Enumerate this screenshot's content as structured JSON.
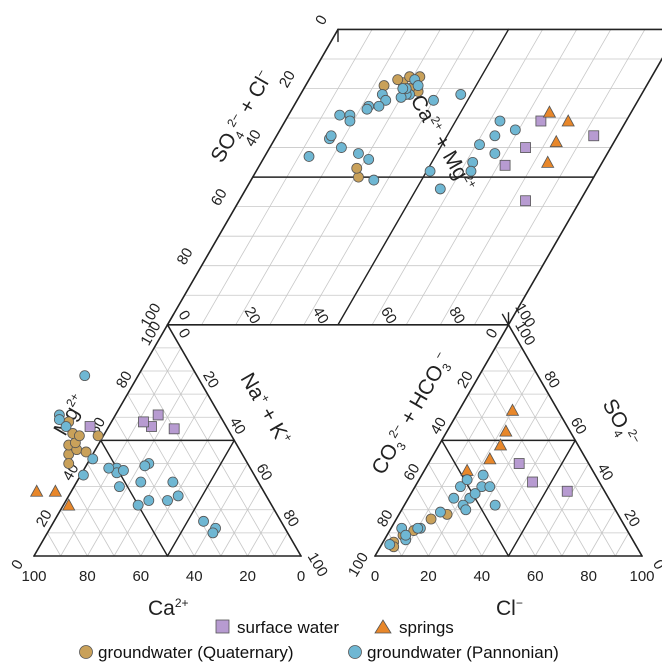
{
  "chart_data": {
    "type": "scatter",
    "subtype": "piper-diagram",
    "colors": {
      "surface_water": "#b79bd1",
      "springs": "#e8872a",
      "groundwater_quaternary": "#c9a15a",
      "groundwater_pannonian": "#6fb7d3",
      "marker_edge": "#555555",
      "frame": "#222222",
      "grid": "#c8c8c8"
    },
    "axes": {
      "cation": {
        "xlabel": "Ca²⁺",
        "xlabel_text": "Ca",
        "xlabel_sup": "2+",
        "left_label_text": "Mg",
        "left_label_sup": "2+",
        "right_label_text": "Na",
        "right_label_sup": "+",
        "right_label_text2": "K",
        "right_label_sup2": "+",
        "right_label_join": " + ",
        "ticks": [
          "0",
          "20",
          "40",
          "60",
          "80",
          "100"
        ]
      },
      "anion": {
        "xlabel": "Cl⁻",
        "xlabel_text": "Cl",
        "xlabel_sup": "−",
        "left_label": "CO₃²⁻ + HCO₃⁻",
        "right_label_text": "SO",
        "right_label_sub": "4",
        "right_label_sup": "2−",
        "ticks": [
          "0",
          "20",
          "40",
          "60",
          "80",
          "100"
        ]
      },
      "diamond": {
        "left_label": "SO₄²⁻ + Cl⁻",
        "right_label": "Ca²⁺ + Mg²⁺",
        "ticks": [
          "0",
          "20",
          "40",
          "60",
          "80",
          "100"
        ]
      }
    },
    "label_text": {
      "co3": "CO",
      "co3_sub": "3",
      "co3_sup": "2−",
      "plus": " + ",
      "hco3": "HCO",
      "hco3_sub": "3",
      "hco3_sup": "−",
      "so4": "SO",
      "so4_sub": "4",
      "so4_sup": "2−",
      "cl": "Cl",
      "cl_sup": "−",
      "ca": "Ca",
      "ca_sup": "2+",
      "mg": "Mg",
      "mg_sup": "2+"
    },
    "legend": [
      {
        "key": "surface_water",
        "label": "surface water",
        "marker": "square"
      },
      {
        "key": "springs",
        "label": "springs",
        "marker": "triangle"
      },
      {
        "key": "groundwater_quaternary",
        "label": "groundwater (Quaternary)",
        "marker": "circle"
      },
      {
        "key": "groundwater_pannonian",
        "label": "groundwater (Pannonian)",
        "marker": "circle"
      }
    ],
    "series": [
      {
        "name": "surface water",
        "key": "surface_water",
        "marker": "square",
        "cation": [
          [
            20,
            55
          ],
          [
            28,
            56
          ],
          [
            23,
            61
          ],
          [
            51,
            56
          ],
          [
            30,
            58
          ]
        ],
        "anion": [
          [
            34,
            40
          ],
          [
            43,
            32
          ],
          [
            58,
            28
          ]
        ],
        "diamond": [
          [
            36,
            93
          ],
          [
            58,
            84
          ],
          [
            46,
            72
          ],
          [
            40,
            75
          ],
          [
            31,
            75
          ]
        ]
      },
      {
        "name": "springs",
        "key": "springs",
        "marker": "triangle",
        "cation": [
          [
            85,
            28
          ],
          [
            78,
            28
          ],
          [
            76,
            22
          ]
        ],
        "anion": [
          [
            20,
            63
          ],
          [
            22,
            54
          ],
          [
            23,
            48
          ],
          [
            22,
            42
          ],
          [
            16,
            37
          ]
        ],
        "diamond": [
          [
            38,
            83
          ],
          [
            45,
            84
          ],
          [
            31,
            83
          ],
          [
            28,
            76
          ]
        ]
      },
      {
        "name": "groundwater (Quaternary)",
        "key": "groundwater_quaternary",
        "marker": "circle",
        "cation": [
          [
            65,
            44
          ],
          [
            58,
            58
          ],
          [
            50,
            52
          ],
          [
            63,
            48
          ],
          [
            61,
            46
          ],
          [
            60,
            49
          ],
          [
            59,
            53
          ],
          [
            57,
            52
          ],
          [
            58,
            45
          ],
          [
            67,
            40
          ]
        ],
        "anion": [
          [
            4,
            6
          ],
          [
            6,
            9
          ],
          [
            13,
            16
          ],
          [
            18,
            18
          ],
          [
            5,
            4
          ],
          [
            9,
            11
          ]
        ],
        "diamond": [
          [
            16,
            32
          ],
          [
            21,
            34
          ],
          [
            18,
            28
          ],
          [
            19,
            23
          ],
          [
            16,
            29
          ],
          [
            17,
            26
          ],
          [
            20,
            31
          ],
          [
            50,
            31
          ],
          [
            47,
            29
          ]
        ]
      },
      {
        "name": "groundwater (Pannonian)",
        "key": "groundwater_pannonian",
        "marker": "circle",
        "cation": [
          [
            42,
            78
          ],
          [
            60,
            61
          ],
          [
            61,
            59
          ],
          [
            57,
            42
          ],
          [
            50,
            38
          ],
          [
            51,
            36
          ],
          [
            37,
            40
          ],
          [
            39,
            39
          ],
          [
            48,
            37
          ],
          [
            38,
            24
          ],
          [
            32,
            32
          ],
          [
            33,
            26
          ],
          [
            44,
            32
          ],
          [
            45,
            24
          ],
          [
            50,
            22
          ],
          [
            53,
            30
          ],
          [
            29,
            15
          ],
          [
            26,
            12
          ],
          [
            28,
            10
          ],
          [
            53,
            38
          ],
          [
            64,
            35
          ],
          [
            60,
            56
          ]
        ],
        "anion": [
          [
            17,
            25
          ],
          [
            17,
            30
          ],
          [
            23,
            25
          ],
          [
            25,
            30
          ],
          [
            18,
            33
          ],
          [
            22,
            22
          ],
          [
            4,
            12
          ],
          [
            8,
            7
          ],
          [
            15,
            19
          ],
          [
            11,
            12
          ],
          [
            7,
            9
          ],
          [
            3,
            5
          ],
          [
            10,
            12
          ],
          [
            34,
            22
          ],
          [
            24,
            20
          ],
          [
            28,
            30
          ],
          [
            24,
            27
          ],
          [
            23,
            35
          ]
        ],
        "diamond": [
          [
            17,
            31
          ],
          [
            19,
            33
          ],
          [
            22,
            32
          ],
          [
            22,
            31
          ],
          [
            22,
            24
          ],
          [
            20,
            30
          ],
          [
            23,
            30
          ],
          [
            24,
            26
          ],
          [
            20,
            29
          ],
          [
            26,
            25
          ],
          [
            26,
            22
          ],
          [
            27,
            22
          ],
          [
            29,
            18
          ],
          [
            29,
            15
          ],
          [
            31,
            19
          ],
          [
            37,
            16
          ],
          [
            36,
            16
          ],
          [
            40,
            21
          ],
          [
            42,
            27
          ],
          [
            43,
            13
          ],
          [
            44,
            31
          ],
          [
            51,
            36
          ],
          [
            54,
            57
          ],
          [
            48,
            51
          ],
          [
            45,
            62
          ],
          [
            36,
            64
          ],
          [
            34,
            69
          ],
          [
            42,
            67
          ],
          [
            48,
            63
          ],
          [
            39,
            61
          ],
          [
            31,
            63
          ],
          [
            22,
            47
          ],
          [
            24,
            40
          ]
        ]
      }
    ]
  }
}
